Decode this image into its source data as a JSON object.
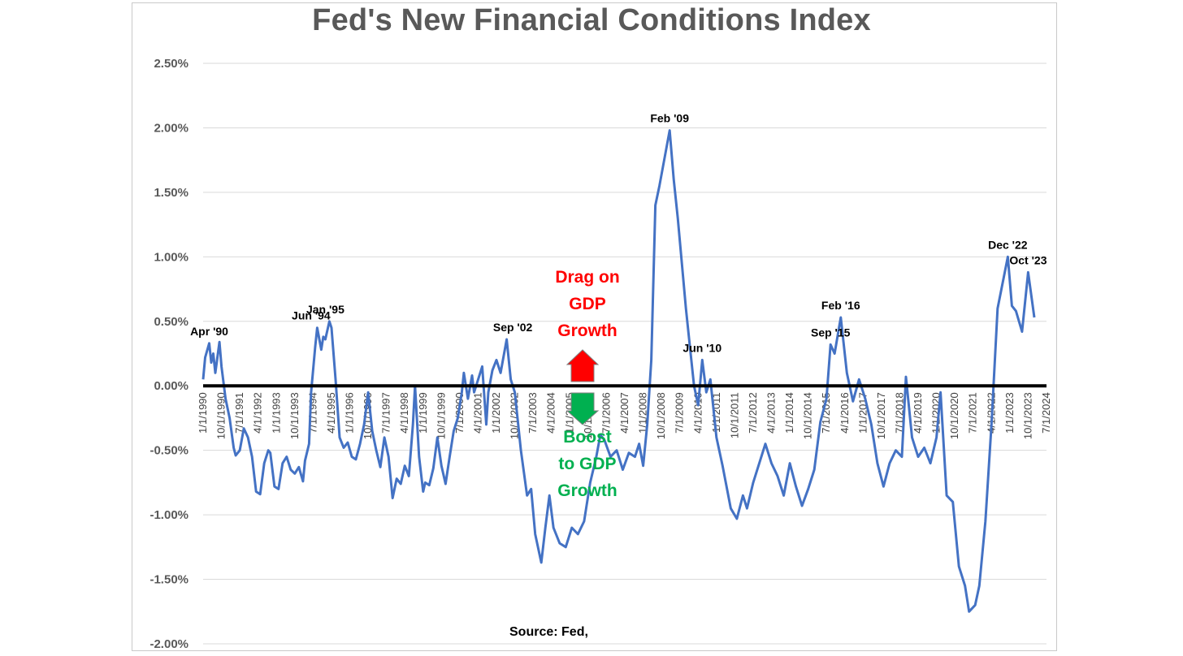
{
  "chart_data": {
    "type": "line",
    "title": "Fed's New Financial Conditions Index",
    "source": "Source: Fed,",
    "ylim": [
      -2.0,
      2.5
    ],
    "y_ticks": [
      "2.50%",
      "2.00%",
      "1.50%",
      "1.00%",
      "0.50%",
      "0.00%",
      "-0.50%",
      "-1.00%",
      "-1.50%",
      "-2.00%"
    ],
    "y_tick_values": [
      2.5,
      2.0,
      1.5,
      1.0,
      0.5,
      0.0,
      -0.5,
      -1.0,
      -1.5,
      -2.0
    ],
    "x_range": [
      "1990-01",
      "2024-07"
    ],
    "x_ticks": [
      "1/1/1990",
      "10/1/1990",
      "7/1/1991",
      "4/1/1992",
      "1/1/1993",
      "10/1/1993",
      "7/1/1994",
      "4/1/1995",
      "1/1/1996",
      "10/1/1996",
      "7/1/1997",
      "4/1/1998",
      "1/1/1999",
      "10/1/1999",
      "7/1/2000",
      "4/1/2001",
      "1/1/2002",
      "10/1/2002",
      "7/1/2003",
      "4/1/2004",
      "1/1/2005",
      "10/1/2005",
      "7/1/2006",
      "4/1/2007",
      "1/1/2008",
      "10/1/2008",
      "7/1/2009",
      "4/1/2010",
      "1/1/2011",
      "10/1/2011",
      "7/1/2012",
      "4/1/2013",
      "1/1/2014",
      "10/1/2014",
      "7/1/2015",
      "4/1/2016",
      "1/1/2017",
      "10/1/2017",
      "7/1/2018",
      "4/1/2019",
      "1/1/2020",
      "10/1/2020",
      "7/1/2021",
      "4/1/2022",
      "1/1/2023",
      "10/1/2023",
      "7/1/2024"
    ],
    "grid": true,
    "series": [
      {
        "color": "#4472c4",
        "points": [
          [
            "1990-01",
            0.05
          ],
          [
            "1990-02",
            0.22
          ],
          [
            "1990-04",
            0.33
          ],
          [
            "1990-05",
            0.18
          ],
          [
            "1990-06",
            0.25
          ],
          [
            "1990-07",
            0.1
          ],
          [
            "1990-09",
            0.34
          ],
          [
            "1990-10",
            0.15
          ],
          [
            "1990-12",
            -0.1
          ],
          [
            "1991-02",
            -0.25
          ],
          [
            "1991-04",
            -0.48
          ],
          [
            "1991-05",
            -0.54
          ],
          [
            "1991-07",
            -0.5
          ],
          [
            "1991-09",
            -0.33
          ],
          [
            "1991-11",
            -0.4
          ],
          [
            "1992-01",
            -0.55
          ],
          [
            "1992-03",
            -0.82
          ],
          [
            "1992-05",
            -0.84
          ],
          [
            "1992-07",
            -0.6
          ],
          [
            "1992-09",
            -0.5
          ],
          [
            "1992-10",
            -0.52
          ],
          [
            "1992-12",
            -0.78
          ],
          [
            "1993-02",
            -0.8
          ],
          [
            "1993-04",
            -0.6
          ],
          [
            "1993-06",
            -0.55
          ],
          [
            "1993-08",
            -0.65
          ],
          [
            "1993-10",
            -0.68
          ],
          [
            "1993-12",
            -0.63
          ],
          [
            "1994-02",
            -0.74
          ],
          [
            "1994-03",
            -0.58
          ],
          [
            "1994-05",
            -0.45
          ],
          [
            "1994-06",
            -0.05
          ],
          [
            "1994-08",
            0.3
          ],
          [
            "1994-09",
            0.45
          ],
          [
            "1994-11",
            0.28
          ],
          [
            "1994-12",
            0.38
          ],
          [
            "1995-01",
            0.36
          ],
          [
            "1995-03",
            0.5
          ],
          [
            "1995-04",
            0.45
          ],
          [
            "1995-06",
            0.05
          ],
          [
            "1995-08",
            -0.4
          ],
          [
            "1995-10",
            -0.48
          ],
          [
            "1995-12",
            -0.44
          ],
          [
            "1996-02",
            -0.55
          ],
          [
            "1996-04",
            -0.57
          ],
          [
            "1996-06",
            -0.45
          ],
          [
            "1996-08",
            -0.3
          ],
          [
            "1996-10",
            -0.05
          ],
          [
            "1996-12",
            -0.35
          ],
          [
            "1997-02",
            -0.5
          ],
          [
            "1997-04",
            -0.63
          ],
          [
            "1997-06",
            -0.4
          ],
          [
            "1997-08",
            -0.55
          ],
          [
            "1997-10",
            -0.87
          ],
          [
            "1997-12",
            -0.72
          ],
          [
            "1998-02",
            -0.76
          ],
          [
            "1998-04",
            -0.62
          ],
          [
            "1998-06",
            -0.7
          ],
          [
            "1998-08",
            -0.3
          ],
          [
            "1998-09",
            0.0
          ],
          [
            "1998-11",
            -0.55
          ],
          [
            "1999-01",
            -0.82
          ],
          [
            "1999-02",
            -0.75
          ],
          [
            "1999-04",
            -0.77
          ],
          [
            "1999-06",
            -0.64
          ],
          [
            "1999-08",
            -0.4
          ],
          [
            "1999-10",
            -0.62
          ],
          [
            "1999-12",
            -0.76
          ],
          [
            "2000-02",
            -0.55
          ],
          [
            "2000-04",
            -0.35
          ],
          [
            "2000-06",
            -0.25
          ],
          [
            "2000-08",
            -0.05
          ],
          [
            "2000-09",
            0.1
          ],
          [
            "2000-11",
            -0.1
          ],
          [
            "2001-01",
            0.08
          ],
          [
            "2001-02",
            -0.05
          ],
          [
            "2001-04",
            0.05
          ],
          [
            "2001-06",
            0.15
          ],
          [
            "2001-08",
            -0.3
          ],
          [
            "2001-09",
            -0.05
          ],
          [
            "2001-11",
            0.12
          ],
          [
            "2002-01",
            0.2
          ],
          [
            "2002-03",
            0.1
          ],
          [
            "2002-06",
            0.36
          ],
          [
            "2002-08",
            0.05
          ],
          [
            "2002-10",
            -0.05
          ],
          [
            "2003-01",
            -0.5
          ],
          [
            "2003-04",
            -0.85
          ],
          [
            "2003-06",
            -0.8
          ],
          [
            "2003-08",
            -1.15
          ],
          [
            "2003-11",
            -1.37
          ],
          [
            "2004-01",
            -1.1
          ],
          [
            "2004-03",
            -0.85
          ],
          [
            "2004-05",
            -1.1
          ],
          [
            "2004-08",
            -1.22
          ],
          [
            "2004-11",
            -1.25
          ],
          [
            "2005-02",
            -1.1
          ],
          [
            "2005-05",
            -1.15
          ],
          [
            "2005-08",
            -1.05
          ],
          [
            "2005-11",
            -0.75
          ],
          [
            "2006-02",
            -0.55
          ],
          [
            "2006-04",
            -0.38
          ],
          [
            "2006-06",
            -0.42
          ],
          [
            "2006-09",
            -0.55
          ],
          [
            "2006-12",
            -0.5
          ],
          [
            "2007-03",
            -0.65
          ],
          [
            "2007-06",
            -0.52
          ],
          [
            "2007-09",
            -0.55
          ],
          [
            "2007-11",
            -0.45
          ],
          [
            "2008-01",
            -0.62
          ],
          [
            "2008-03",
            -0.3
          ],
          [
            "2008-05",
            0.2
          ],
          [
            "2008-07",
            1.4
          ],
          [
            "2008-09",
            1.55
          ],
          [
            "2009-02",
            1.98
          ],
          [
            "2009-04",
            1.6
          ],
          [
            "2009-06",
            1.3
          ],
          [
            "2009-08",
            0.95
          ],
          [
            "2009-10",
            0.6
          ],
          [
            "2009-12",
            0.3
          ],
          [
            "2010-02",
            0.0
          ],
          [
            "2010-04",
            -0.15
          ],
          [
            "2010-06",
            0.2
          ],
          [
            "2010-08",
            -0.05
          ],
          [
            "2010-10",
            0.05
          ],
          [
            "2011-01",
            -0.4
          ],
          [
            "2011-04",
            -0.62
          ],
          [
            "2011-08",
            -0.95
          ],
          [
            "2011-11",
            -1.03
          ],
          [
            "2012-02",
            -0.85
          ],
          [
            "2012-04",
            -0.95
          ],
          [
            "2012-07",
            -0.75
          ],
          [
            "2012-10",
            -0.6
          ],
          [
            "2013-01",
            -0.45
          ],
          [
            "2013-04",
            -0.6
          ],
          [
            "2013-07",
            -0.7
          ],
          [
            "2013-10",
            -0.85
          ],
          [
            "2014-01",
            -0.6
          ],
          [
            "2014-04",
            -0.78
          ],
          [
            "2014-07",
            -0.93
          ],
          [
            "2014-10",
            -0.8
          ],
          [
            "2015-01",
            -0.65
          ],
          [
            "2015-04",
            -0.28
          ],
          [
            "2015-07",
            -0.1
          ],
          [
            "2015-09",
            0.32
          ],
          [
            "2015-11",
            0.25
          ],
          [
            "2016-02",
            0.53
          ],
          [
            "2016-05",
            0.1
          ],
          [
            "2016-08",
            -0.12
          ],
          [
            "2016-11",
            0.05
          ],
          [
            "2017-02",
            -0.1
          ],
          [
            "2017-05",
            -0.3
          ],
          [
            "2017-08",
            -0.6
          ],
          [
            "2017-11",
            -0.78
          ],
          [
            "2018-02",
            -0.6
          ],
          [
            "2018-05",
            -0.5
          ],
          [
            "2018-08",
            -0.55
          ],
          [
            "2018-10",
            0.07
          ],
          [
            "2019-01",
            -0.4
          ],
          [
            "2019-04",
            -0.55
          ],
          [
            "2019-07",
            -0.48
          ],
          [
            "2019-10",
            -0.6
          ],
          [
            "2020-01",
            -0.4
          ],
          [
            "2020-03",
            -0.05
          ],
          [
            "2020-06",
            -0.85
          ],
          [
            "2020-09",
            -0.9
          ],
          [
            "2020-12",
            -1.4
          ],
          [
            "2021-03",
            -1.55
          ],
          [
            "2021-05",
            -1.75
          ],
          [
            "2021-08",
            -1.7
          ],
          [
            "2021-10",
            -1.55
          ],
          [
            "2022-01",
            -1.05
          ],
          [
            "2022-04",
            -0.3
          ],
          [
            "2022-07",
            0.6
          ],
          [
            "2022-12",
            1.0
          ],
          [
            "2023-02",
            0.62
          ],
          [
            "2023-04",
            0.58
          ],
          [
            "2023-07",
            0.42
          ],
          [
            "2023-10",
            0.88
          ],
          [
            "2024-01",
            0.53
          ]
        ]
      }
    ],
    "annotations": [
      {
        "label": "Apr '90",
        "x": "1990-04",
        "y": 0.33
      },
      {
        "label": "Jun '94",
        "x": "1994-06",
        "y": 0.45
      },
      {
        "label": "Jan '95",
        "x": "1995-01",
        "y": 0.5
      },
      {
        "label": "Sep '02",
        "x": "2002-09",
        "y": 0.36
      },
      {
        "label": "Feb '09",
        "x": "2009-02",
        "y": 1.98
      },
      {
        "label": "Jun '10",
        "x": "2010-06",
        "y": 0.2
      },
      {
        "label": "Sep '15",
        "x": "2015-09",
        "y": 0.32
      },
      {
        "label": "Feb '16",
        "x": "2016-02",
        "y": 0.53
      },
      {
        "label": "Dec '22",
        "x": "2022-12",
        "y": 1.0
      },
      {
        "label": "Oct '23",
        "x": "2023-10",
        "y": 0.88
      }
    ],
    "callouts": {
      "drag": [
        "Drag on",
        "GDP",
        "Growth"
      ],
      "boost": [
        "Boost",
        "to GDP",
        "Growth"
      ],
      "drag_color": "#ff0000",
      "boost_color": "#00b050"
    }
  }
}
